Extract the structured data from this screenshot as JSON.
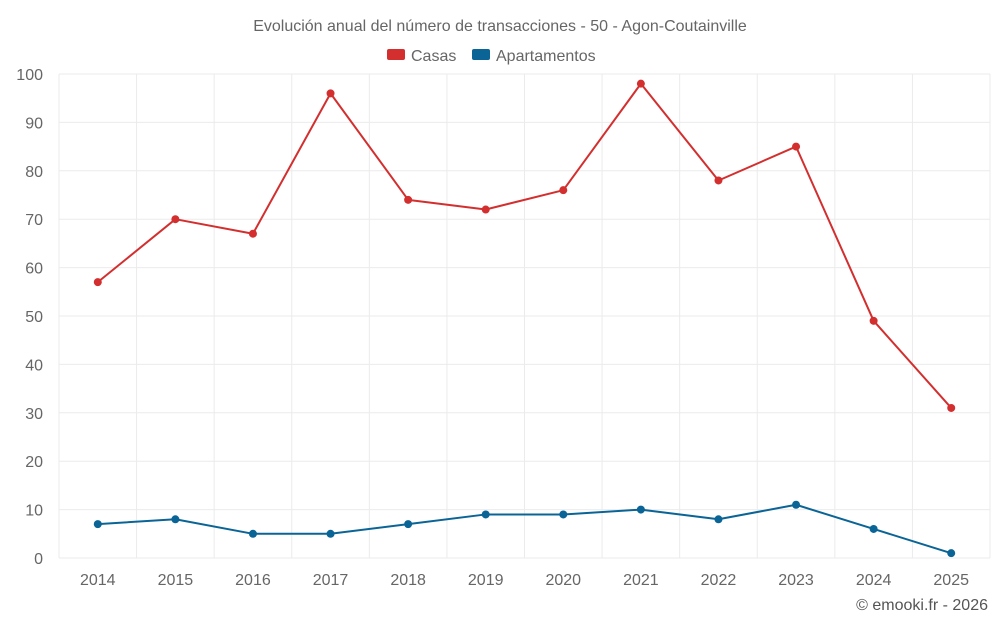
{
  "chart_data": {
    "type": "line",
    "title": "Evolución anual del número de transacciones - 50 - Agon-Coutainville",
    "categories": [
      "2014",
      "2015",
      "2016",
      "2017",
      "2018",
      "2019",
      "2020",
      "2021",
      "2022",
      "2023",
      "2024",
      "2025"
    ],
    "series": [
      {
        "name": "Casas",
        "color": "#d32f2f",
        "values": [
          57,
          70,
          67,
          96,
          74,
          72,
          76,
          98,
          78,
          85,
          49,
          31
        ]
      },
      {
        "name": "Apartamentos",
        "color": "#0a6496",
        "values": [
          7,
          8,
          5,
          5,
          7,
          9,
          9,
          10,
          8,
          11,
          6,
          1
        ]
      }
    ],
    "ylim": [
      0,
      100
    ],
    "yticks": [
      0,
      10,
      20,
      30,
      40,
      50,
      60,
      70,
      80,
      90,
      100
    ],
    "xlabel": "",
    "ylabel": "",
    "grid": true,
    "legend": "top-center"
  },
  "credit": "© emooki.fr - 2026"
}
